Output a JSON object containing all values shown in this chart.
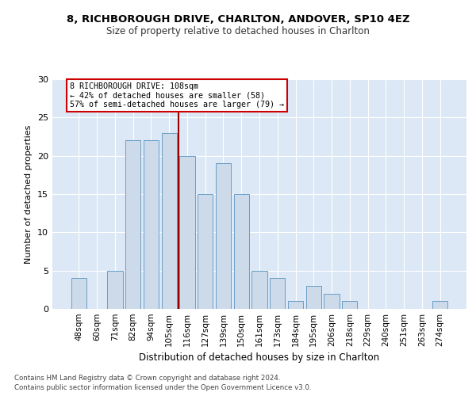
{
  "title1": "8, RICHBOROUGH DRIVE, CHARLTON, ANDOVER, SP10 4EZ",
  "title2": "Size of property relative to detached houses in Charlton",
  "xlabel": "Distribution of detached houses by size in Charlton",
  "ylabel": "Number of detached properties",
  "categories": [
    "48sqm",
    "60sqm",
    "71sqm",
    "82sqm",
    "94sqm",
    "105sqm",
    "116sqm",
    "127sqm",
    "139sqm",
    "150sqm",
    "161sqm",
    "173sqm",
    "184sqm",
    "195sqm",
    "206sqm",
    "218sqm",
    "229sqm",
    "240sqm",
    "251sqm",
    "263sqm",
    "274sqm"
  ],
  "values": [
    4,
    0,
    5,
    22,
    22,
    23,
    20,
    15,
    19,
    15,
    5,
    4,
    1,
    3,
    2,
    1,
    0,
    0,
    0,
    0,
    1
  ],
  "bar_color": "#cddaea",
  "bar_edge_color": "#6a9ec5",
  "vline_x_index": 5.5,
  "vline_color": "#990000",
  "annotation_line1": "8 RICHBOROUGH DRIVE: 108sqm",
  "annotation_line2": "← 42% of detached houses are smaller (58)",
  "annotation_line3": "57% of semi-detached houses are larger (79) →",
  "annotation_box_color": "#ffffff",
  "annotation_edge_color": "#cc0000",
  "ylim": [
    0,
    30
  ],
  "yticks": [
    0,
    5,
    10,
    15,
    20,
    25,
    30
  ],
  "footer1": "Contains HM Land Registry data © Crown copyright and database right 2024.",
  "footer2": "Contains public sector information licensed under the Open Government Licence v3.0.",
  "bg_color": "#ffffff",
  "plot_bg_color": "#dce8f5"
}
